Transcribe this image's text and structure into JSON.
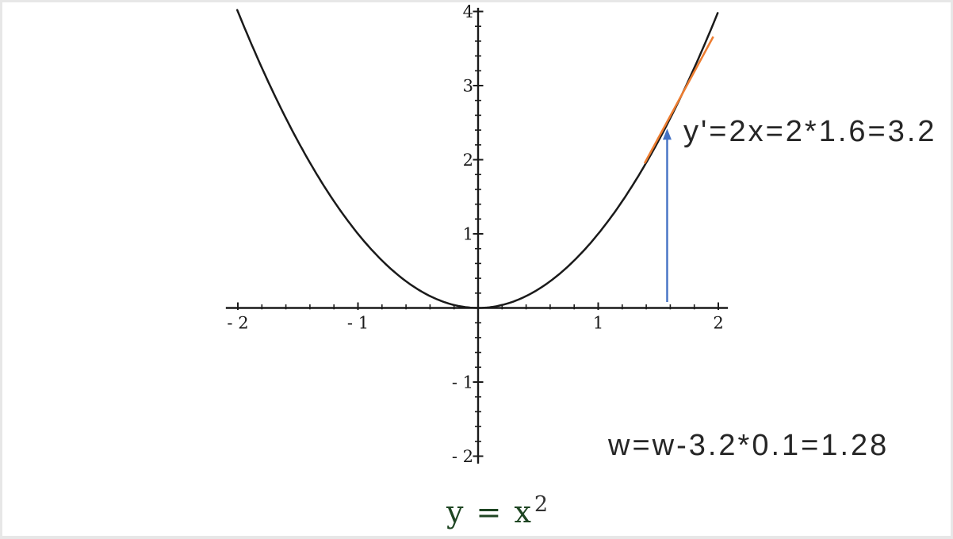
{
  "page": {
    "background_color": "#e7e7e7",
    "canvas_color": "#ffffff"
  },
  "chart_data": {
    "type": "line",
    "title": "",
    "xlabel": "",
    "ylabel": "",
    "grid": false,
    "legend": null,
    "axis_color": "#1a1a1a",
    "xlim": [
      -2.1,
      2.08
    ],
    "ylim": [
      -2.1,
      4.05
    ],
    "x_ticks": [
      {
        "v": -2,
        "label": "- 2"
      },
      {
        "v": -1,
        "label": "- 1"
      },
      {
        "v": 1,
        "label": "1"
      },
      {
        "v": 2,
        "label": "2"
      }
    ],
    "y_ticks": [
      {
        "v": 4,
        "label": "4"
      },
      {
        "v": 3,
        "label": "3"
      },
      {
        "v": 2,
        "label": "2"
      },
      {
        "v": 1,
        "label": "1"
      },
      {
        "v": -1,
        "label": "- 1"
      },
      {
        "v": -2,
        "label": "- 2"
      }
    ],
    "minor_tick_step": 0.2,
    "minor_range_x": [
      -2,
      2
    ],
    "minor_range_y": [
      -2,
      4
    ],
    "function": {
      "expression": "y = x^2",
      "power": 2,
      "domain": [
        -2.005,
        2.005
      ],
      "color": "#1a1a1a"
    },
    "samples": {
      "x": [
        -2,
        -1.5,
        -1,
        -0.5,
        0,
        0.5,
        1,
        1.5,
        2
      ],
      "y": [
        4,
        2.25,
        1,
        0.25,
        0,
        0.25,
        1,
        2.25,
        4
      ]
    },
    "overlays": {
      "tangent_line": {
        "at_x": 1.6,
        "slope": 3.2,
        "x1": 1.386,
        "y1": 1.95,
        "x2": 1.958,
        "y2": 3.66,
        "color": "#ED7D31"
      },
      "arrow": {
        "x": 1.574,
        "y_from": 0.08,
        "y_to": 2.42,
        "direction": "up",
        "color": "#4472C4"
      }
    }
  },
  "annotations": {
    "derivative_text": "y'=2x=2*1.6=3.2",
    "update_text": "w=w-3.2*0.1=1.28"
  },
  "formula": {
    "base": "y = x",
    "exponent": "2",
    "base_color": "#1e4522",
    "exponent_color": "#333333"
  }
}
